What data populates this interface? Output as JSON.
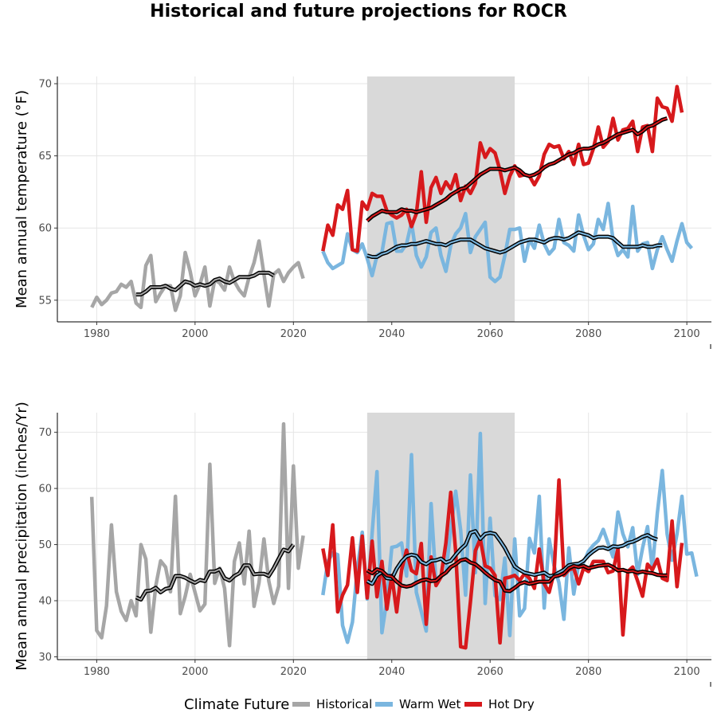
{
  "title": "Historical and future projections for ROCR",
  "colors": {
    "historical": "#a6a6a6",
    "warm_wet": "#7ab6df",
    "hot_dry": "#d7191c",
    "smooth": "#000000",
    "shade": "#d9d9d9",
    "grid": "#e5e5e5"
  },
  "legend": {
    "title": "Climate Future",
    "items": [
      {
        "key": "historical",
        "label": "Historical"
      },
      {
        "key": "warm_wet",
        "label": "Warm Wet"
      },
      {
        "key": "hot_dry",
        "label": "Hot Dry"
      }
    ]
  },
  "chart_data": [
    {
      "type": "line",
      "ylabel": "Mean annual temperature (°F)",
      "xlim": [
        1972,
        2105
      ],
      "ylim": [
        53.5,
        70.5
      ],
      "xticks": [
        1980,
        2000,
        2020,
        2040,
        2060,
        2080,
        2100
      ],
      "yticks": [
        55,
        60,
        65,
        70
      ],
      "shaded_range": [
        2035,
        2065
      ],
      "series": [
        {
          "key": "historical",
          "name": "Historical",
          "x_start": 1979,
          "values": [
            54.5,
            55.2,
            54.7,
            55.0,
            55.5,
            55.6,
            56.1,
            55.9,
            56.3,
            54.8,
            54.5,
            57.4,
            58.1,
            54.9,
            55.5,
            56.0,
            56.0,
            54.3,
            55.3,
            58.3,
            57.0,
            55.3,
            56.1,
            57.3,
            54.6,
            56.4,
            56.2,
            55.7,
            57.3,
            56.3,
            55.7,
            55.3,
            56.6,
            57.6,
            59.1,
            56.8,
            54.6,
            56.8,
            57.1,
            56.3,
            56.9,
            57.3,
            57.6,
            56.5
          ]
        },
        {
          "key": "historical_smooth",
          "name": "",
          "x_start": 1988,
          "values": [
            55.4,
            55.4,
            55.6,
            55.9,
            55.9,
            55.9,
            56.0,
            55.8,
            55.7,
            56.0,
            56.3,
            56.2,
            56.0,
            56.1,
            56.0,
            56.1,
            56.4,
            56.5,
            56.3,
            56.2,
            56.4,
            56.6,
            56.6,
            56.6,
            56.7,
            56.9,
            56.9,
            56.9,
            56.7
          ]
        },
        {
          "key": "warm_wet",
          "name": "Warm Wet",
          "x_start": 2026,
          "values": [
            58.4,
            57.6,
            57.2,
            57.4,
            57.6,
            59.6,
            58.5,
            58.3,
            58.9,
            57.9,
            56.7,
            58.1,
            58.3,
            60.3,
            60.4,
            58.4,
            58.4,
            58.9,
            60.4,
            58.1,
            57.3,
            58.0,
            59.7,
            60.0,
            58.1,
            57.0,
            58.8,
            59.6,
            60.0,
            61.0,
            58.3,
            59.4,
            59.9,
            60.4,
            56.6,
            56.3,
            56.6,
            58.1,
            59.9,
            59.9,
            60.0,
            57.7,
            59.2,
            58.6,
            60.2,
            58.9,
            58.2,
            58.6,
            60.6,
            59.0,
            58.8,
            58.4,
            60.9,
            59.5,
            58.5,
            58.9,
            60.6,
            59.9,
            61.7,
            59.2,
            58.1,
            58.5,
            58.0,
            61.5,
            58.4,
            58.9,
            59.0,
            57.2,
            58.5,
            59.4,
            58.5,
            57.7,
            59.1,
            60.3,
            59.0,
            58.6
          ]
        },
        {
          "key": "warm_wet_smooth",
          "name": "",
          "x_start": 2035,
          "values": [
            58.1,
            58.0,
            58.0,
            58.2,
            58.3,
            58.5,
            58.7,
            58.8,
            58.8,
            58.9,
            58.9,
            59.0,
            59.1,
            59.0,
            58.9,
            58.9,
            58.8,
            59.0,
            59.1,
            59.2,
            59.2,
            59.2,
            59.0,
            58.8,
            58.6,
            58.5,
            58.4,
            58.3,
            58.4,
            58.6,
            58.8,
            59.0,
            59.1,
            59.2,
            59.2,
            59.1,
            59.0,
            59.2,
            59.3,
            59.3,
            59.2,
            59.3,
            59.5,
            59.7,
            59.6,
            59.5,
            59.3,
            59.4,
            59.4,
            59.4,
            59.3,
            59.0,
            58.7,
            58.7,
            58.7,
            58.7,
            58.8,
            58.7,
            58.7,
            58.8,
            58.8
          ]
        },
        {
          "key": "hot_dry",
          "name": "Hot Dry",
          "x_start": 2026,
          "values": [
            58.4,
            60.2,
            59.5,
            61.6,
            61.3,
            62.6,
            58.5,
            58.4,
            61.8,
            61.3,
            62.4,
            62.2,
            62.2,
            61.2,
            60.9,
            60.7,
            60.9,
            61.3,
            60.1,
            61.0,
            63.9,
            60.4,
            62.8,
            63.5,
            62.4,
            63.2,
            62.7,
            63.7,
            61.9,
            62.9,
            62.4,
            63.1,
            65.9,
            64.9,
            65.5,
            65.2,
            64.0,
            62.4,
            63.6,
            64.3,
            63.6,
            63.7,
            63.6,
            63.0,
            63.6,
            65.1,
            65.8,
            65.6,
            65.7,
            64.8,
            65.3,
            64.4,
            65.8,
            64.4,
            64.5,
            65.5,
            67.0,
            65.6,
            66.0,
            67.6,
            66.1,
            66.8,
            66.9,
            67.4,
            65.3,
            67.0,
            67.1,
            65.3,
            69.0,
            68.4,
            68.3,
            67.4,
            69.8,
            68.0
          ]
        },
        {
          "key": "hot_dry_smooth",
          "name": "",
          "x_start": 2035,
          "values": [
            60.5,
            60.8,
            61.0,
            61.2,
            61.1,
            61.1,
            61.1,
            61.3,
            61.2,
            61.2,
            61.1,
            61.2,
            61.3,
            61.4,
            61.6,
            61.8,
            62.0,
            62.3,
            62.5,
            62.7,
            62.8,
            63.1,
            63.4,
            63.7,
            63.9,
            64.1,
            64.1,
            64.1,
            64.0,
            64.1,
            64.2,
            64.0,
            63.7,
            63.6,
            63.7,
            63.9,
            64.2,
            64.4,
            64.5,
            64.7,
            64.9,
            65.1,
            65.2,
            65.4,
            65.5,
            65.5,
            65.6,
            65.8,
            65.9,
            66.1,
            66.3,
            66.5,
            66.6,
            66.7,
            66.8,
            66.5,
            66.7,
            67.0,
            67.1,
            67.3,
            67.5,
            67.6
          ]
        }
      ]
    },
    {
      "type": "line",
      "ylabel": "Mean annual precipitation (inches/Yr)",
      "xlim": [
        1972,
        2105
      ],
      "ylim": [
        29.5,
        73.5
      ],
      "xticks": [
        1980,
        2000,
        2020,
        2040,
        2060,
        2080,
        2100
      ],
      "yticks": [
        30,
        40,
        50,
        60,
        70
      ],
      "shaded_range": [
        2035,
        2065
      ],
      "series": [
        {
          "key": "historical",
          "name": "Historical",
          "x_start": 1979,
          "values": [
            58.5,
            34.7,
            33.4,
            39.1,
            53.5,
            41.6,
            38.1,
            36.5,
            40.0,
            37.3,
            50.0,
            47.4,
            34.4,
            42.6,
            47.1,
            46.0,
            41.6,
            58.6,
            37.7,
            40.8,
            44.7,
            41.5,
            38.2,
            39.4,
            64.3,
            43.1,
            45.8,
            42.2,
            32.0,
            47.0,
            50.3,
            43.0,
            52.4,
            39.0,
            43.2,
            51.0,
            43.5,
            39.5,
            42.6,
            71.5,
            42.2,
            64.0,
            45.8,
            51.6
          ]
        },
        {
          "key": "historical_smooth",
          "name": "",
          "x_start": 1988,
          "values": [
            40.6,
            40.2,
            41.7,
            41.8,
            42.3,
            41.5,
            42.1,
            42.3,
            44.4,
            44.4,
            44.1,
            43.6,
            43.2,
            43.7,
            43.5,
            45.2,
            45.2,
            45.6,
            44.0,
            43.6,
            44.4,
            44.9,
            46.3,
            46.3,
            44.7,
            44.8,
            44.8,
            44.4,
            45.8,
            47.5,
            49.1,
            48.8,
            50.0
          ]
        },
        {
          "key": "warm_wet",
          "name": "Warm Wet",
          "x_start": 2026,
          "values": [
            41.0,
            47.0,
            48.5,
            48.2,
            35.6,
            32.6,
            36.2,
            45.6,
            52.2,
            40.3,
            52.0,
            63.0,
            34.3,
            40.2,
            49.5,
            49.7,
            50.3,
            44.4,
            66.0,
            41.5,
            38.1,
            34.6,
            57.3,
            43.1,
            44.3,
            45.0,
            52.5,
            59.5,
            52.6,
            41.0,
            62.4,
            45.0,
            69.8,
            39.5,
            54.7,
            40.9,
            40.2,
            47.6,
            33.8,
            51.0,
            37.3,
            38.6,
            51.1,
            48.5,
            58.6,
            38.7,
            51.0,
            46.2,
            43.2,
            36.7,
            49.4,
            41.2,
            46.5,
            46.8,
            48.8,
            49.9,
            50.7,
            52.7,
            50.2,
            47.8,
            55.8,
            51.9,
            49.6,
            53.0,
            44.7,
            49.4,
            53.2,
            45.7,
            55.6,
            63.2,
            51.9,
            47.2,
            51.9,
            58.6,
            48.3,
            48.5,
            44.3
          ]
        },
        {
          "key": "warm_wet_smooth",
          "name": "",
          "x_start": 2035,
          "values": [
            43.5,
            43.0,
            44.5,
            45.1,
            44.0,
            43.9,
            45.7,
            47.0,
            47.9,
            48.2,
            48.0,
            46.9,
            46.5,
            47.1,
            47.2,
            47.5,
            46.8,
            47.1,
            48.2,
            49.2,
            50.0,
            52.1,
            52.4,
            51.0,
            51.9,
            52.1,
            51.9,
            50.7,
            49.4,
            47.7,
            46.1,
            45.5,
            45.0,
            44.8,
            44.6,
            44.8,
            45.0,
            44.4,
            44.5,
            45.0,
            45.5,
            46.3,
            46.5,
            46.6,
            47.1,
            48.1,
            48.8,
            49.4,
            49.5,
            49.2,
            49.7,
            49.6,
            49.8,
            50.3,
            50.5,
            50.9,
            51.4,
            51.7,
            51.2,
            50.9
          ]
        },
        {
          "key": "hot_dry",
          "name": "Hot Dry",
          "x_start": 2026,
          "values": [
            49.3,
            44.5,
            53.5,
            38.0,
            41.0,
            42.8,
            51.2,
            41.5,
            51.5,
            40.5,
            50.6,
            40.7,
            47.0,
            38.5,
            44.5,
            38.0,
            45.5,
            49.0,
            45.4,
            44.8,
            50.2,
            35.8,
            47.8,
            42.7,
            44.2,
            50.3,
            59.3,
            48.7,
            31.8,
            31.6,
            39.8,
            48.9,
            51.0,
            46.2,
            45.8,
            44.5,
            32.5,
            44.0,
            44.2,
            44.5,
            43.6,
            44.8,
            44.0,
            42.2,
            49.2,
            43.0,
            41.5,
            45.0,
            61.5,
            44.5,
            45.5,
            45.8,
            43.0,
            45.8,
            45.2,
            47.0,
            47.0,
            47.0,
            45.0,
            45.3,
            49.3,
            33.9,
            45.2,
            46.0,
            43.5,
            40.8,
            46.5,
            45.5,
            47.4,
            44.0,
            43.6,
            54.2,
            42.5,
            50.3
          ]
        },
        {
          "key": "hot_dry_smooth",
          "name": "",
          "x_start": 2035,
          "values": [
            45.4,
            44.9,
            45.6,
            45.3,
            44.5,
            44.3,
            43.4,
            42.7,
            42.5,
            42.7,
            43.2,
            43.6,
            43.8,
            43.5,
            43.6,
            44.4,
            45.0,
            46.0,
            46.5,
            47.2,
            47.4,
            46.8,
            46.5,
            45.8,
            45.0,
            44.3,
            43.7,
            43.4,
            41.8,
            41.7,
            42.3,
            43.0,
            43.3,
            43.0,
            43.2,
            43.4,
            43.4,
            43.4,
            44.3,
            44.5,
            44.9,
            45.8,
            46.2,
            46.0,
            46.2,
            45.8,
            46.0,
            46.2,
            46.3,
            46.4,
            46.0,
            45.4,
            45.5,
            45.2,
            45.3,
            45.0,
            45.2,
            45.0,
            44.9,
            44.6,
            44.5,
            44.5
          ]
        }
      ]
    }
  ]
}
